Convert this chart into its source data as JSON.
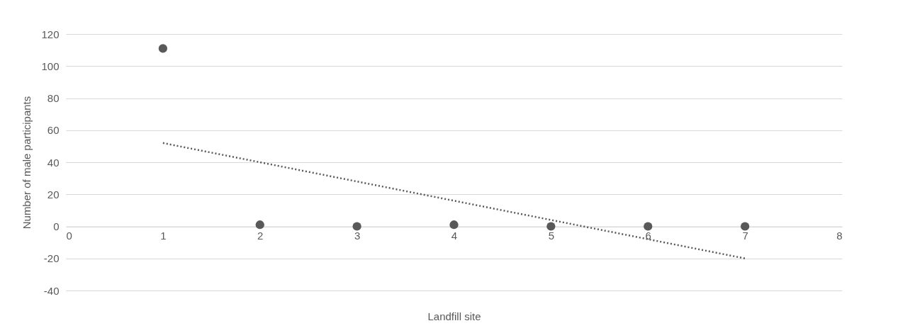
{
  "chart_data": {
    "type": "scatter",
    "xlabel": "Landfill site",
    "ylabel": "Number of male  participants",
    "xlim": [
      0,
      8
    ],
    "xticks": [
      0,
      1,
      2,
      3,
      4,
      5,
      6,
      7,
      8
    ],
    "ylim": [
      -40,
      120
    ],
    "yticks": [
      -40,
      -20,
      0,
      20,
      40,
      60,
      80,
      100,
      120
    ],
    "grid": "y",
    "series": [
      {
        "color": "#595959",
        "marker": "circle",
        "x": [
          1,
          2,
          3,
          4,
          5,
          6,
          7
        ],
        "values": [
          111,
          1,
          0,
          1,
          0,
          0,
          0
        ]
      },
      {
        "type": "line",
        "color": "#595959",
        "marker": "none",
        "line_style": "dotted",
        "x": [
          1,
          7
        ],
        "values": [
          52,
          -20
        ]
      }
    ]
  }
}
